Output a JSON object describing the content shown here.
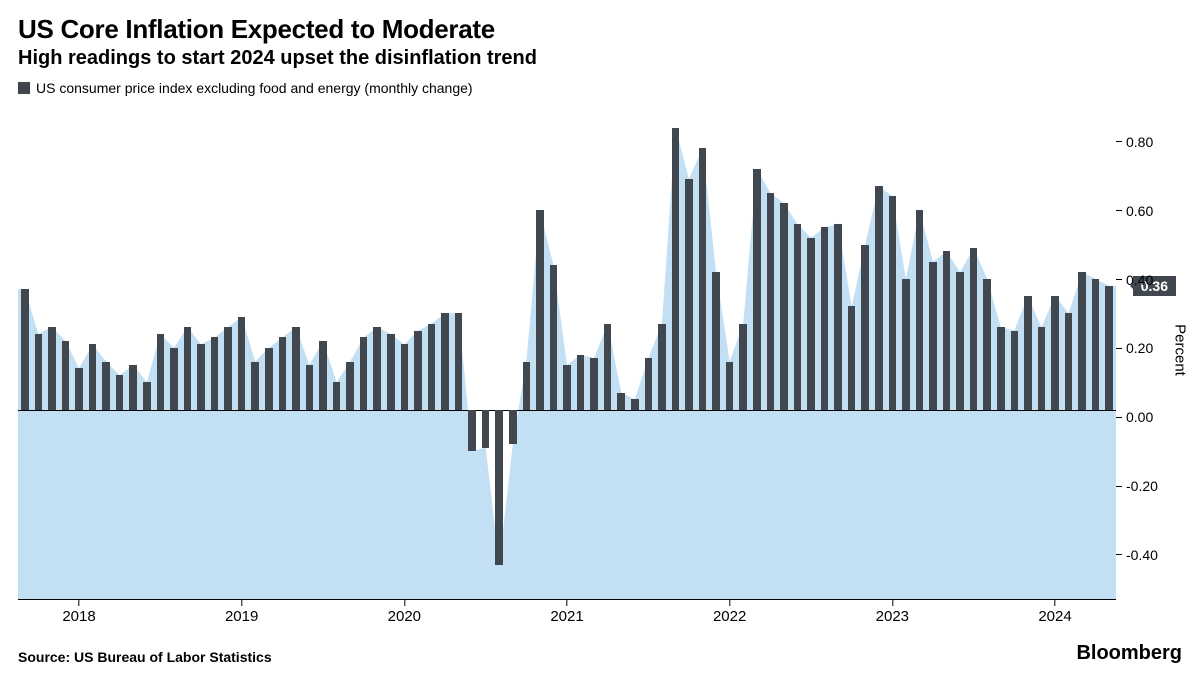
{
  "title": "US Core Inflation Expected to Moderate",
  "subtitle": "High readings to start 2024 upset the disinflation trend",
  "legend": {
    "swatch_color": "#41474f",
    "label": "US consumer price index excluding food and energy (monthly change)"
  },
  "chart": {
    "type": "bar",
    "bar_color": "#41474f",
    "area_fill": "#bcdcf2",
    "area_opacity": 0.9,
    "background": "#ffffff",
    "callout": {
      "value": 0.36,
      "label": "0.36"
    },
    "ylim": [
      -0.55,
      0.9
    ],
    "yticks": [
      {
        "v": 0.8,
        "label": "0.80"
      },
      {
        "v": 0.6,
        "label": "0.60"
      },
      {
        "v": 0.4,
        "label": "0.40"
      },
      {
        "v": 0.2,
        "label": "0.20"
      },
      {
        "v": 0.0,
        "label": "0.00"
      },
      {
        "v": -0.2,
        "label": "-0.20"
      },
      {
        "v": -0.4,
        "label": "-0.40"
      }
    ],
    "ylabel": "Percent",
    "xticks": [
      {
        "idx": 4,
        "label": "2018"
      },
      {
        "idx": 16,
        "label": "2019"
      },
      {
        "idx": 28,
        "label": "2020"
      },
      {
        "idx": 40,
        "label": "2021"
      },
      {
        "idx": 52,
        "label": "2022"
      },
      {
        "idx": 64,
        "label": "2023"
      },
      {
        "idx": 76,
        "label": "2024"
      }
    ],
    "values": [
      0.35,
      0.22,
      0.24,
      0.2,
      0.12,
      0.19,
      0.14,
      0.1,
      0.13,
      0.08,
      0.22,
      0.18,
      0.24,
      0.19,
      0.21,
      0.24,
      0.27,
      0.14,
      0.18,
      0.21,
      0.24,
      0.13,
      0.2,
      0.08,
      0.14,
      0.21,
      0.24,
      0.22,
      0.19,
      0.23,
      0.25,
      0.28,
      0.28,
      -0.12,
      -0.11,
      -0.45,
      -0.1,
      0.14,
      0.58,
      0.42,
      0.13,
      0.16,
      0.15,
      0.25,
      0.05,
      0.03,
      0.15,
      0.25,
      0.82,
      0.67,
      0.76,
      0.4,
      0.14,
      0.25,
      0.7,
      0.63,
      0.6,
      0.54,
      0.5,
      0.53,
      0.54,
      0.3,
      0.48,
      0.65,
      0.62,
      0.38,
      0.58,
      0.43,
      0.46,
      0.4,
      0.47,
      0.38,
      0.24,
      0.23,
      0.33,
      0.24,
      0.33,
      0.28,
      0.4,
      0.38,
      0.36
    ],
    "bar_width_ratio": 0.55
  },
  "source": "Source: US Bureau of Labor Statistics",
  "brand": "Bloomberg"
}
